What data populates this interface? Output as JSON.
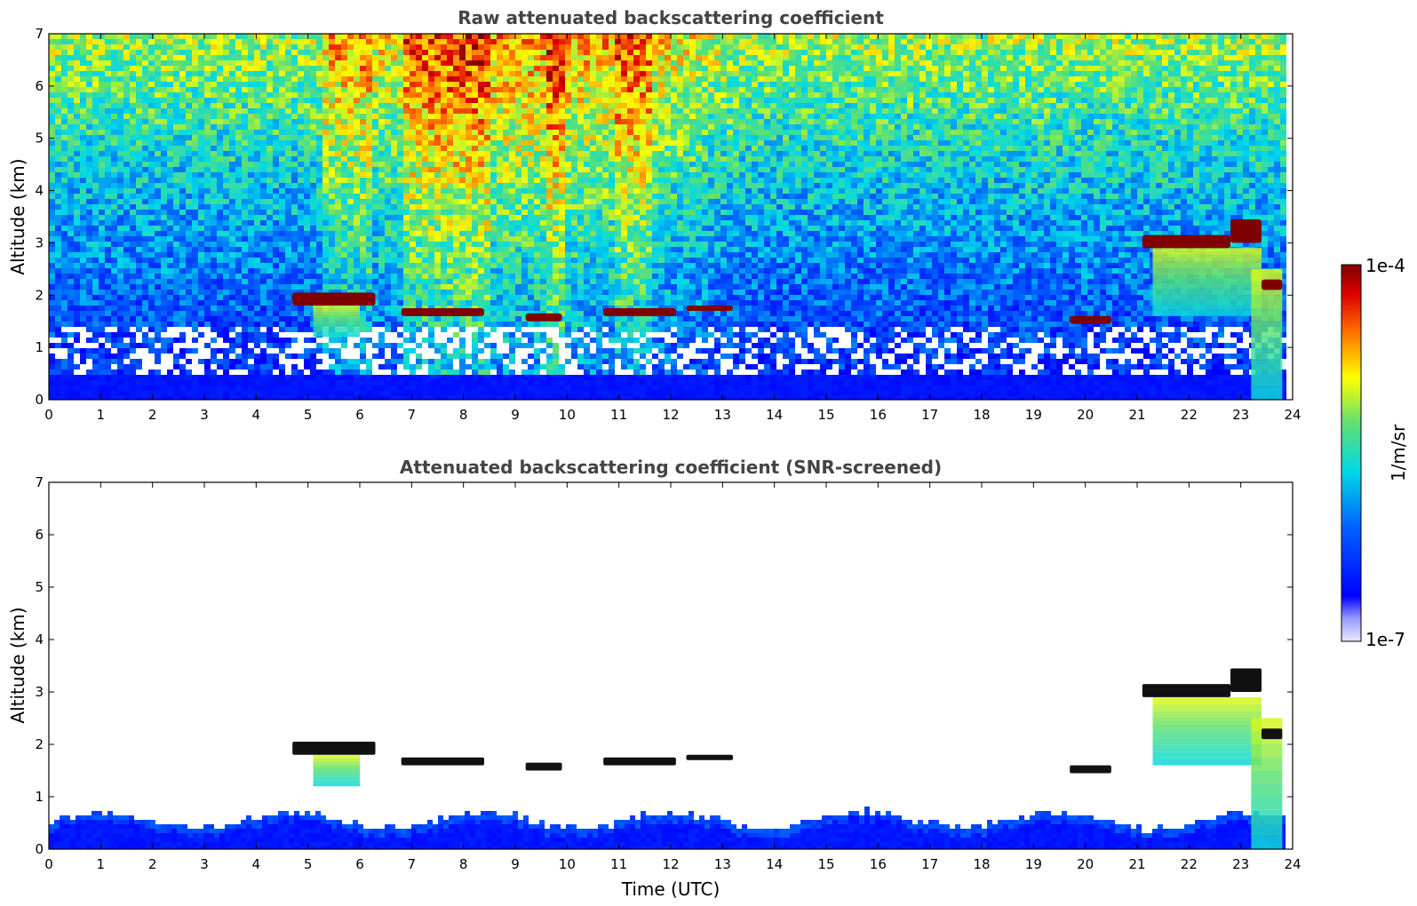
{
  "colors": {
    "low": "#0000ff",
    "mid": "#00e5e5",
    "high": "#ffff00",
    "peak": "#800000",
    "screened_core": "#111111"
  },
  "chart_data": [
    {
      "type": "heatmap",
      "title": "Raw attenuated backscattering coefficient",
      "xlabel": "",
      "ylabel": "Altitude (km)",
      "xlim": [
        0,
        24
      ],
      "ylim": [
        0,
        7
      ],
      "xticks": [
        "0",
        "1",
        "2",
        "3",
        "4",
        "5",
        "6",
        "7",
        "8",
        "9",
        "10",
        "11",
        "12",
        "13",
        "14",
        "15",
        "16",
        "17",
        "18",
        "19",
        "20",
        "21",
        "22",
        "23",
        "24"
      ],
      "yticks": [
        "0",
        "1",
        "2",
        "3",
        "4",
        "5",
        "6",
        "7"
      ],
      "data_end_hour": 23.8,
      "boundary_layer_top_km": 0.5,
      "cloud_layers": [
        {
          "start": 4.7,
          "end": 6.3,
          "base_km": 1.8,
          "top_km": 2.05
        },
        {
          "start": 6.8,
          "end": 8.4,
          "base_km": 1.6,
          "top_km": 1.75
        },
        {
          "start": 9.2,
          "end": 9.9,
          "base_km": 1.5,
          "top_km": 1.65
        },
        {
          "start": 10.7,
          "end": 12.1,
          "base_km": 1.6,
          "top_km": 1.75
        },
        {
          "start": 12.3,
          "end": 13.2,
          "base_km": 1.7,
          "top_km": 1.8
        },
        {
          "start": 19.7,
          "end": 20.5,
          "base_km": 1.45,
          "top_km": 1.6
        },
        {
          "start": 21.1,
          "end": 22.8,
          "base_km": 2.9,
          "top_km": 3.15
        },
        {
          "start": 22.8,
          "end": 23.4,
          "base_km": 3.0,
          "top_km": 3.45
        },
        {
          "start": 23.4,
          "end": 23.8,
          "base_km": 2.1,
          "top_km": 2.3
        }
      ],
      "precipitation_shafts": [
        {
          "start": 5.1,
          "end": 6.0,
          "bottom_km": 1.2,
          "top_km": 1.8
        },
        {
          "start": 21.3,
          "end": 23.4,
          "bottom_km": 1.6,
          "top_km": 2.9
        },
        {
          "start": 23.2,
          "end": 23.8,
          "bottom_km": 0.0,
          "top_km": 2.5
        }
      ]
    },
    {
      "type": "heatmap",
      "title": "Attenuated backscattering coefficient (SNR-screened)",
      "xlabel": "Time (UTC)",
      "ylabel": "Altitude (km)",
      "xlim": [
        0,
        24
      ],
      "ylim": [
        0,
        7
      ],
      "xticks": [
        "0",
        "1",
        "2",
        "3",
        "4",
        "5",
        "6",
        "7",
        "8",
        "9",
        "10",
        "11",
        "12",
        "13",
        "14",
        "15",
        "16",
        "17",
        "18",
        "19",
        "20",
        "21",
        "22",
        "23",
        "24"
      ],
      "yticks": [
        "0",
        "1",
        "2",
        "3",
        "4",
        "5",
        "6",
        "7"
      ],
      "data_end_hour": 23.8,
      "boundary_layer_top_km": 0.6
    }
  ],
  "colorbar": {
    "label": "1/m/sr",
    "max_label": "1e-4",
    "min_label": "1e-7"
  }
}
